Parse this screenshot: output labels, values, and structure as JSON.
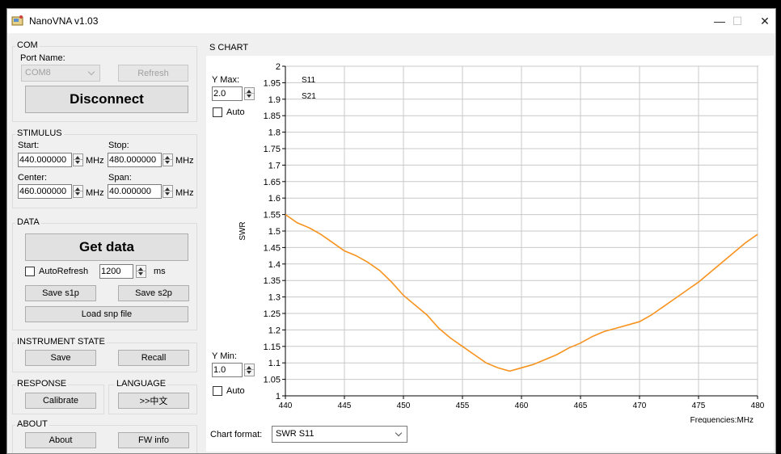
{
  "window": {
    "title": "NanoVNA v1.03",
    "minimize": "—",
    "maximize": "☐",
    "close": "✕"
  },
  "com": {
    "title": "COM",
    "port_label": "Port Name:",
    "port_value": "COM8",
    "refresh": "Refresh",
    "disconnect": "Disconnect"
  },
  "stimulus": {
    "title": "STIMULUS",
    "start_label": "Start:",
    "start_value": "440.000000",
    "start_unit": "MHz",
    "stop_label": "Stop:",
    "stop_value": "480.000000",
    "stop_unit": "MHz",
    "center_label": "Center:",
    "center_value": "460.000000",
    "center_unit": "MHz",
    "span_label": "Span:",
    "span_value": "40.000000",
    "span_unit": "MHz"
  },
  "data": {
    "title": "DATA",
    "get_data": "Get data",
    "autorefresh": "AutoRefresh",
    "interval": "1200",
    "interval_unit": "ms",
    "save_s1p": "Save s1p",
    "save_s2p": "Save s2p",
    "load_snp": "Load snp file"
  },
  "instrument": {
    "title": "INSTRUMENT STATE",
    "save": "Save",
    "recall": "Recall"
  },
  "response": {
    "title": "RESPONSE",
    "calibrate": "Calibrate"
  },
  "language": {
    "title": "LANGUAGE",
    "button": ">>中文"
  },
  "about": {
    "title": "ABOUT",
    "about": "About",
    "fw_info": "FW info"
  },
  "chart": {
    "title": "S CHART",
    "ymax_label": "Y Max:",
    "ymax_value": "2.0",
    "ymin_label": "Y Min:",
    "ymin_value": "1.0",
    "auto_label": "Auto",
    "format_label": "Chart format:",
    "format_value": "SWR S11",
    "ylabel": "SWR",
    "xlabel": "Frequencies:MHz"
  },
  "chart_data": {
    "type": "line",
    "ylabel": "SWR",
    "xlabel": "Frequencies:MHz",
    "xlim": [
      440,
      480
    ],
    "ylim": [
      1,
      2
    ],
    "x_ticks": [
      440,
      445,
      450,
      455,
      460,
      465,
      470,
      475,
      480
    ],
    "y_ticks": [
      "1",
      "1.05",
      "1.1",
      "1.15",
      "1.2",
      "1.25",
      "1.3",
      "1.35",
      "1.4",
      "1.45",
      "1.5",
      "1.55",
      "1.6",
      "1.65",
      "1.7",
      "1.75",
      "1.8",
      "1.85",
      "1.9",
      "1.95",
      "2"
    ],
    "grid": true,
    "series": [
      {
        "name": "S11",
        "color": "#f7931e",
        "x": [
          440,
          441,
          442,
          443,
          444,
          445,
          446,
          447,
          448,
          449,
          450,
          451,
          452,
          453,
          454,
          455,
          456,
          457,
          458,
          459,
          460,
          461,
          462,
          463,
          464,
          465,
          466,
          467,
          468,
          469,
          470,
          471,
          472,
          473,
          474,
          475,
          476,
          477,
          478,
          479,
          480
        ],
        "values": [
          1.55,
          1.525,
          1.51,
          1.49,
          1.465,
          1.44,
          1.425,
          1.405,
          1.38,
          1.345,
          1.305,
          1.275,
          1.245,
          1.205,
          1.175,
          1.15,
          1.125,
          1.1,
          1.085,
          1.075,
          1.085,
          1.095,
          1.11,
          1.125,
          1.145,
          1.16,
          1.18,
          1.195,
          1.205,
          1.215,
          1.225,
          1.245,
          1.27,
          1.295,
          1.32,
          1.345,
          1.375,
          1.405,
          1.435,
          1.465,
          1.49
        ]
      },
      {
        "name": "S21",
        "color": "#0000ff",
        "x": [],
        "values": []
      }
    ]
  }
}
